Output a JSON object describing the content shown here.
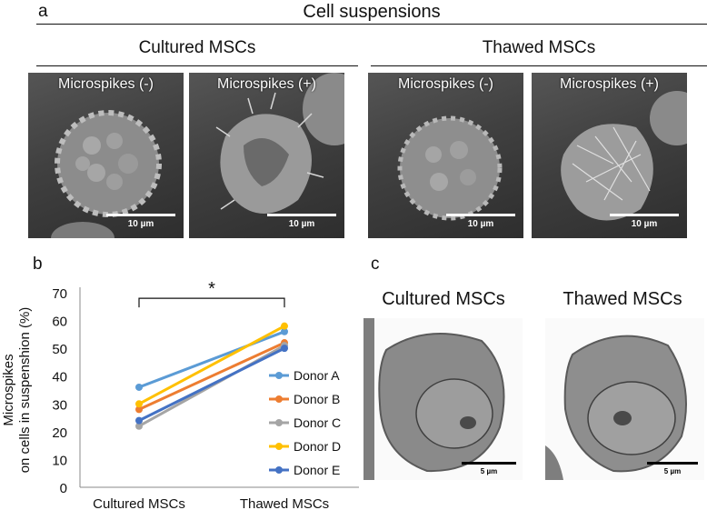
{
  "panel_a": {
    "letter": "a",
    "title": "Cell suspensions",
    "groups": [
      {
        "title": "Cultured MSCs"
      },
      {
        "title": "Thawed MSCs"
      }
    ],
    "images": [
      {
        "label": "Microspikes (-)",
        "scale": "10 µm"
      },
      {
        "label": "Microspikes (+)",
        "scale": "10 µm"
      },
      {
        "label": "Microspikes (-)",
        "scale": "10 µm"
      },
      {
        "label": "Microspikes (+)",
        "scale": "10 µm"
      }
    ]
  },
  "panel_b": {
    "letter": "b",
    "significance": "*"
  },
  "panel_c": {
    "letter": "c",
    "images": [
      {
        "title": "Cultured MSCs",
        "scale": "5 µm"
      },
      {
        "title": "Thawed MSCs",
        "scale": "5 µm"
      }
    ]
  },
  "chart_data": {
    "type": "line",
    "categories": [
      "Cultured MSCs",
      "Thawed MSCs"
    ],
    "ylabel": "Microspikes\non cells in suspenshion (%)",
    "ylim": [
      0,
      70
    ],
    "yticks": [
      0,
      10,
      20,
      30,
      40,
      50,
      60,
      70
    ],
    "grid": false,
    "legend": "right",
    "series": [
      {
        "name": "Donor A",
        "values": [
          36,
          56
        ],
        "color": "#5b9bd5"
      },
      {
        "name": "Donor B",
        "values": [
          28,
          52
        ],
        "color": "#ed7d31"
      },
      {
        "name": "Donor C",
        "values": [
          22,
          51
        ],
        "color": "#a5a5a5"
      },
      {
        "name": "Donor D",
        "values": [
          30,
          58
        ],
        "color": "#ffc000"
      },
      {
        "name": "Donor E",
        "values": [
          24,
          50
        ],
        "color": "#4472c4"
      }
    ]
  }
}
